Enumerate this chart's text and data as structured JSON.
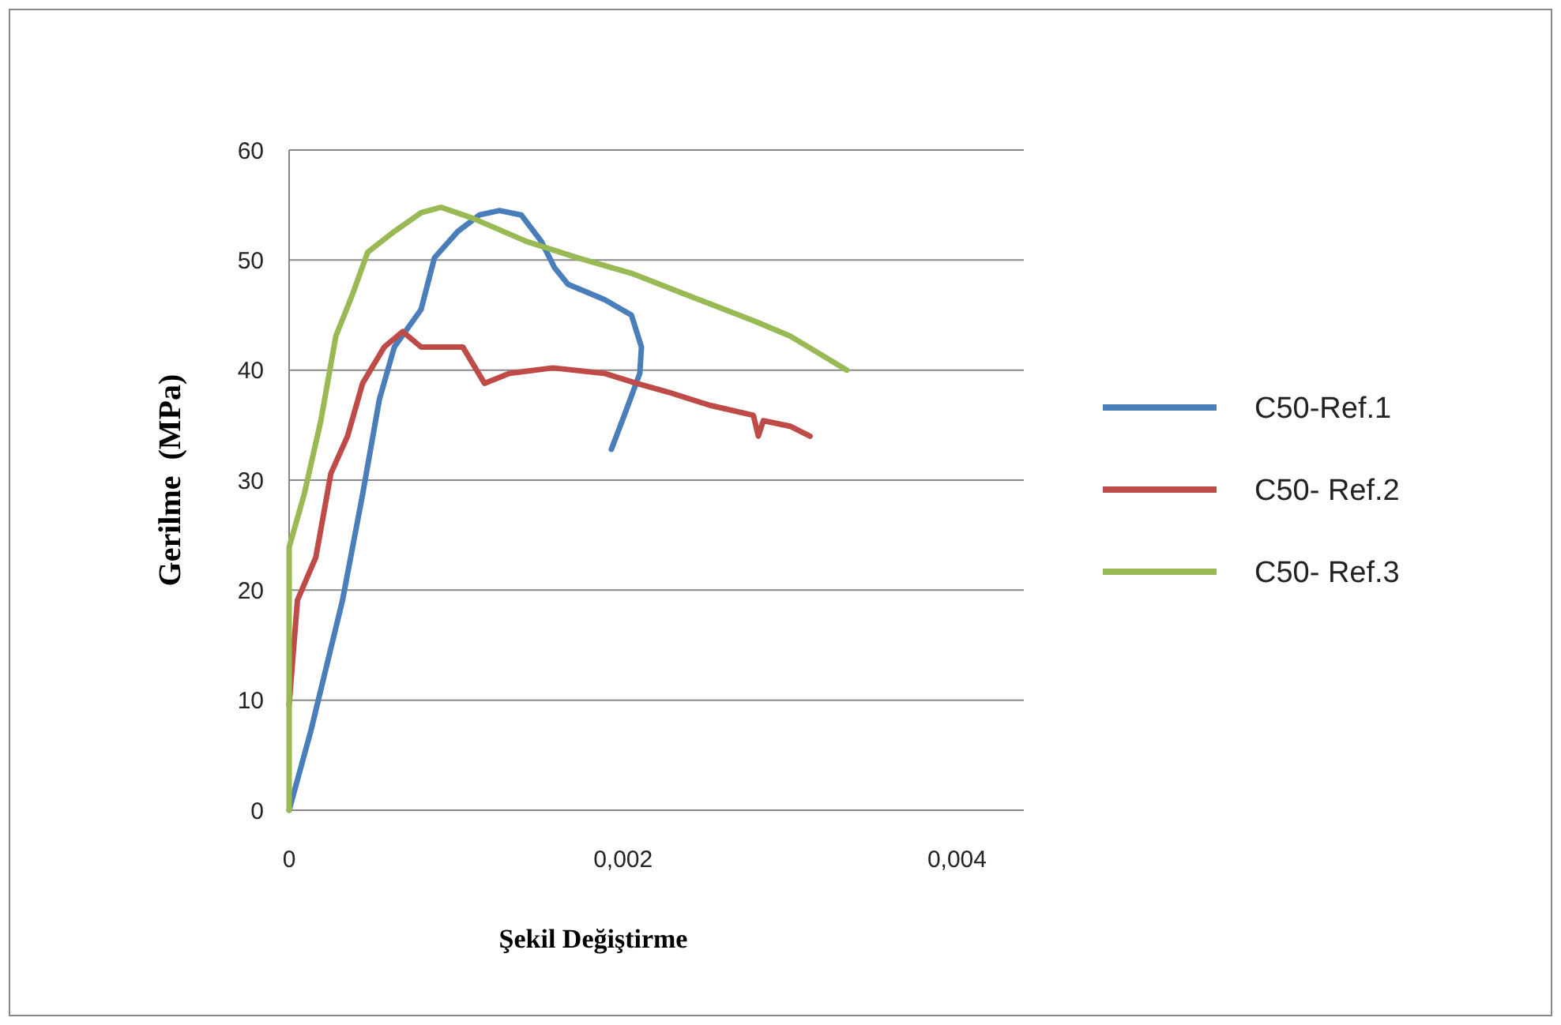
{
  "chart_data": {
    "type": "line",
    "xlabel": "Şekil Değiştirme",
    "ylabel": "Gerilme  (MPa)",
    "xlim": [
      0,
      0.0044
    ],
    "xticks": [
      {
        "value": 0,
        "label": "0"
      },
      {
        "value": 0.002,
        "label": "0,002"
      },
      {
        "value": 0.004,
        "label": "0,004"
      }
    ],
    "ylim": [
      0,
      60
    ],
    "yticks": [
      0,
      10,
      20,
      30,
      40,
      50,
      60
    ],
    "grid": "y",
    "legend": "right",
    "marker": "none",
    "line_style": "solid",
    "series": [
      {
        "name": "C50-Ref.1",
        "color": "#4a7ebb",
        "x": [
          0,
          0.00013,
          0.00032,
          0.00044,
          0.00054,
          0.00063,
          0.00079,
          0.00087,
          0.00101,
          0.00114,
          0.00126,
          0.00139,
          0.00151,
          0.00159,
          0.00167,
          0.00189,
          0.00205,
          0.00211,
          0.0021,
          0.00202,
          0.00193
        ],
        "values": [
          0,
          7.2,
          19.1,
          28.7,
          37.3,
          42.1,
          45.5,
          50.2,
          52.6,
          54.1,
          54.5,
          54.1,
          51.7,
          49.3,
          47.8,
          46.4,
          45,
          42.1,
          39.7,
          36.4,
          32.8
        ]
      },
      {
        "name": "C50- Ref.2",
        "color": "#be4b48",
        "x": [
          0,
          5e-05,
          0.00016,
          0.00025,
          0.00035,
          0.00044,
          0.00057,
          0.00068,
          0.00079,
          0.00104,
          0.00117,
          0.00132,
          0.00158,
          0.00189,
          0.00208,
          0.00227,
          0.00252,
          0.00278,
          0.00281,
          0.00284,
          0.003,
          0.00312
        ],
        "values": [
          9.6,
          19.1,
          23,
          30.6,
          34,
          38.8,
          42.1,
          43.5,
          42.1,
          42.1,
          38.8,
          39.7,
          40.2,
          39.7,
          38.8,
          38,
          36.8,
          35.9,
          34,
          35.4,
          34.9,
          34
        ]
      },
      {
        "name": "C50- Ref.3",
        "color": "#98b954",
        "x": [
          0,
          0,
          9e-05,
          0.00019,
          0.00028,
          0.00038,
          0.00047,
          0.00063,
          0.00079,
          0.00091,
          0.0011,
          0.00142,
          0.00173,
          0.00205,
          0.00237,
          0.00278,
          0.003,
          0.00334
        ],
        "values": [
          0,
          23.9,
          28.7,
          35.4,
          43.1,
          46.9,
          50.7,
          52.6,
          54.3,
          54.8,
          53.8,
          51.7,
          50.2,
          48.8,
          46.9,
          44.5,
          43.1,
          40
        ]
      }
    ]
  }
}
